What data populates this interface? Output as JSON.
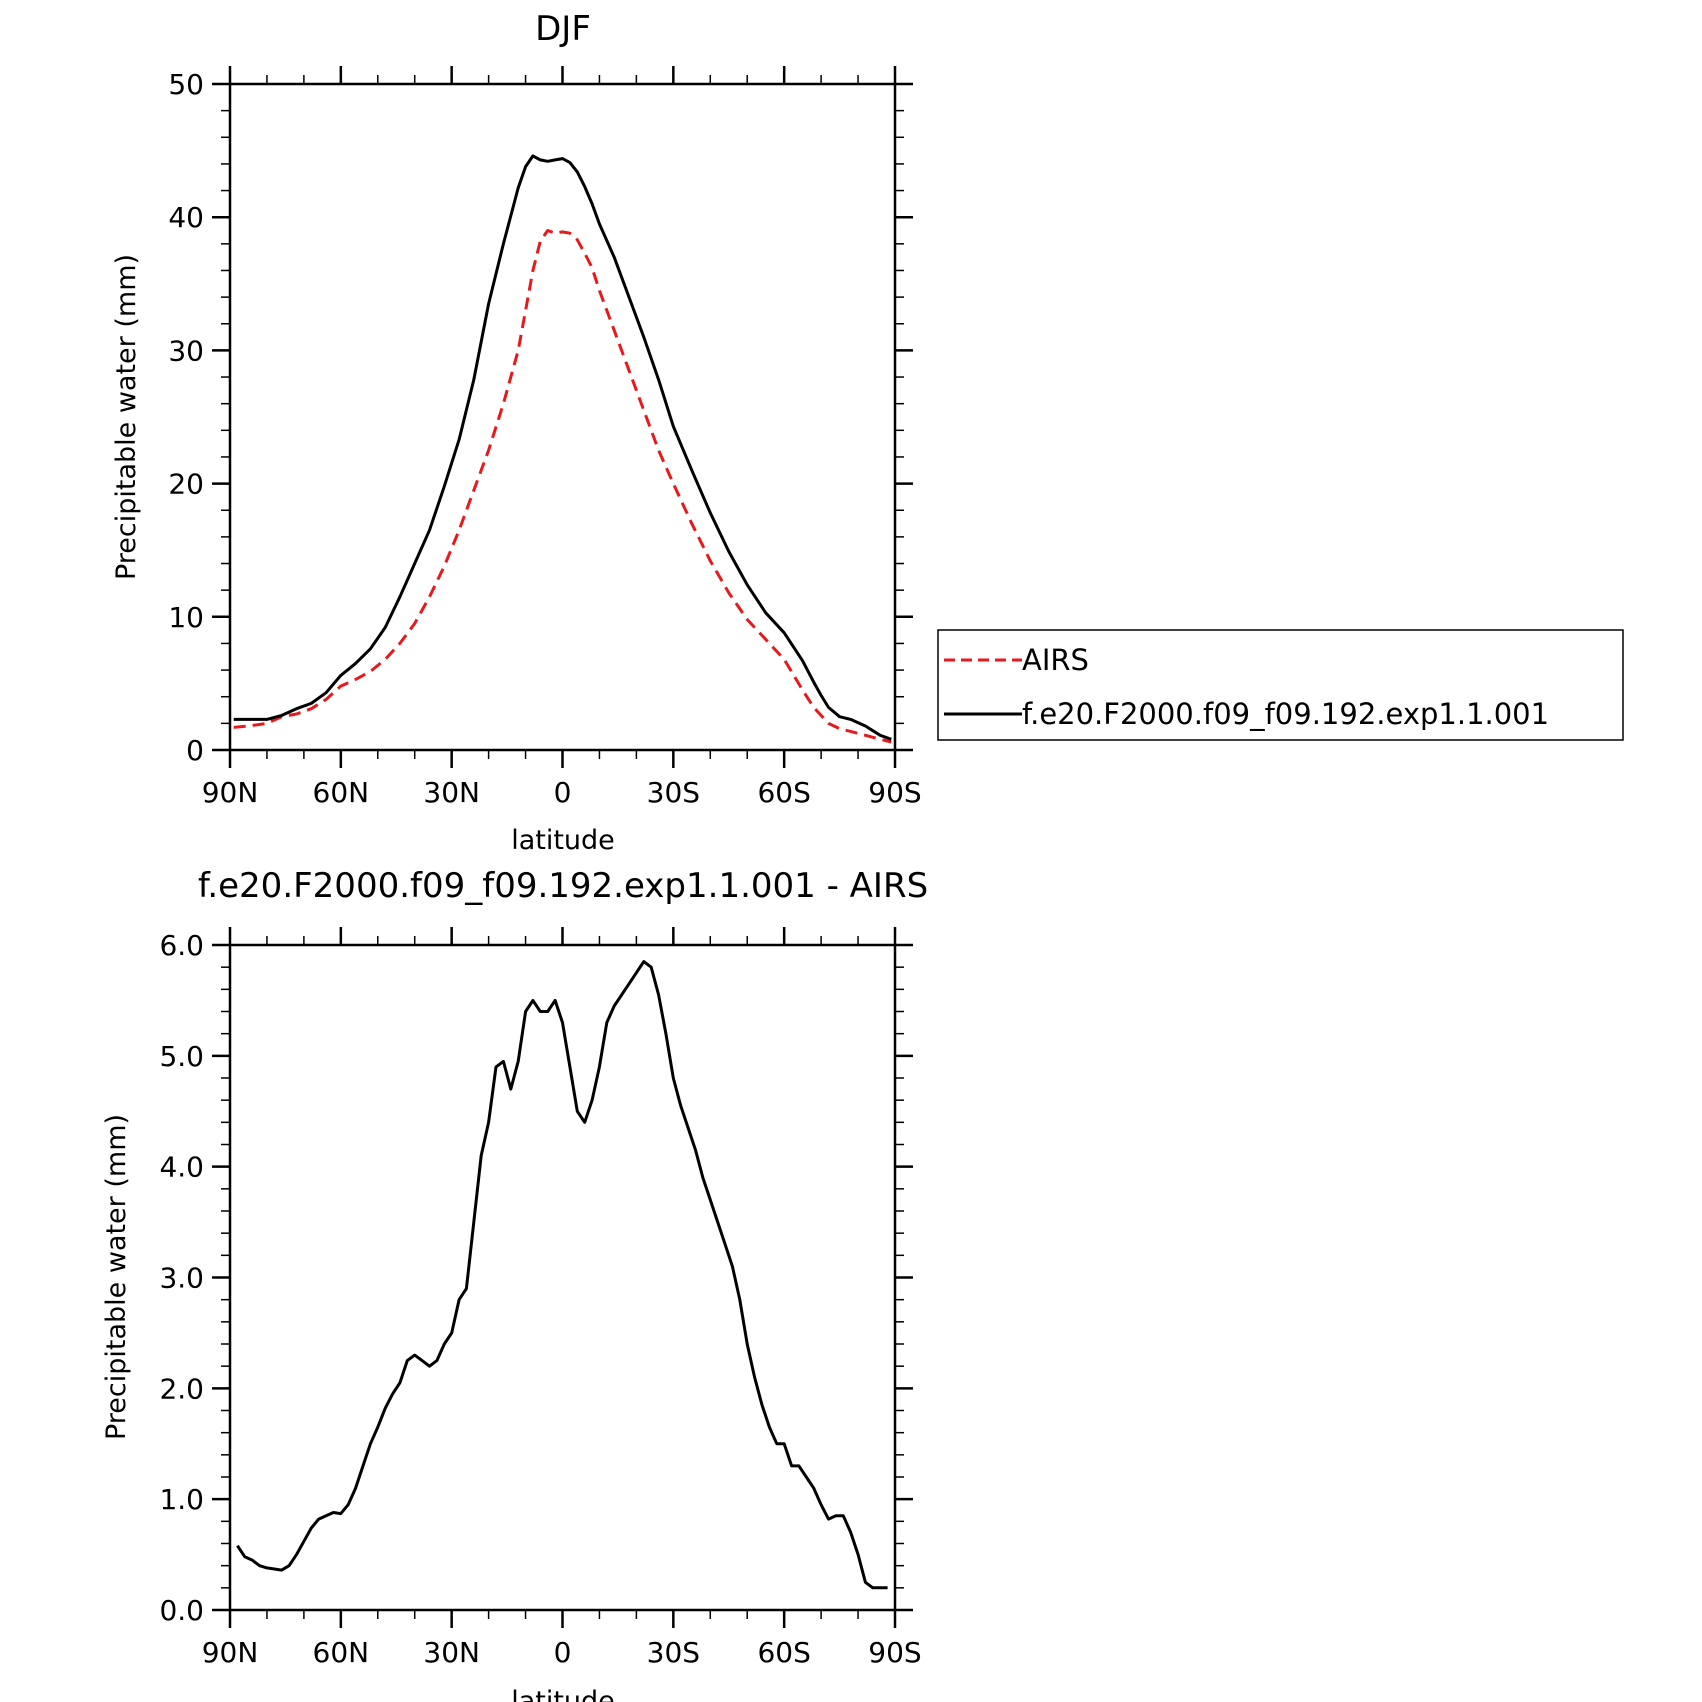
{
  "chart_data": [
    {
      "type": "line",
      "title": "DJF",
      "xlabel": "latitude",
      "ylabel": "Precipitable water (mm)",
      "xlim": [
        -90,
        90
      ],
      "ylim": [
        0,
        50
      ],
      "x_ticks": [
        {
          "value": -90,
          "label": "90N"
        },
        {
          "value": -60,
          "label": "60N"
        },
        {
          "value": -30,
          "label": "30N"
        },
        {
          "value": 0,
          "label": "0"
        },
        {
          "value": 30,
          "label": "30S"
        },
        {
          "value": 60,
          "label": "60S"
        },
        {
          "value": 90,
          "label": "90S"
        }
      ],
      "y_ticks": [
        {
          "value": 0,
          "label": "0"
        },
        {
          "value": 10,
          "label": "10"
        },
        {
          "value": 20,
          "label": "20"
        },
        {
          "value": 30,
          "label": "30"
        },
        {
          "value": 40,
          "label": "40"
        },
        {
          "value": 50,
          "label": "50"
        }
      ],
      "y_minor_step": 2,
      "x_minor_step": 10,
      "legend": {
        "placement": "right",
        "entries": [
          {
            "label": "AIRS",
            "color": "#e8191c",
            "dash": "dashed"
          },
          {
            "label": "f.e20.F2000.f09_f09.192.exp1.1.001",
            "color": "#000000",
            "dash": "solid"
          }
        ]
      },
      "series": [
        {
          "name": "AIRS",
          "color": "#e8191c",
          "dash": "dashed",
          "x": [
            -89,
            -85,
            -80,
            -76,
            -72,
            -68,
            -64,
            -60,
            -56,
            -52,
            -48,
            -44,
            -40,
            -36,
            -32,
            -28,
            -24,
            -20,
            -16,
            -12,
            -10,
            -8,
            -6,
            -4,
            -2,
            0,
            2,
            4,
            6,
            8,
            10,
            14,
            18,
            22,
            26,
            30,
            35,
            40,
            45,
            50,
            55,
            60,
            65,
            68,
            70,
            72,
            75,
            78,
            82,
            86,
            89
          ],
          "y": [
            1.7,
            1.8,
            2.0,
            2.5,
            2.7,
            3.1,
            3.8,
            4.8,
            5.3,
            5.9,
            6.8,
            8.0,
            9.5,
            11.5,
            13.8,
            16.5,
            19.5,
            22.5,
            26.0,
            30.0,
            33.0,
            36.0,
            38.2,
            39.0,
            38.8,
            38.9,
            38.8,
            38.3,
            37.3,
            36.2,
            34.5,
            31.5,
            28.5,
            25.5,
            22.5,
            20.0,
            17.0,
            14.2,
            11.8,
            9.8,
            8.3,
            6.8,
            4.5,
            3.2,
            2.6,
            2.0,
            1.6,
            1.4,
            1.1,
            0.8,
            0.6
          ]
        },
        {
          "name": "f.e20.F2000.f09_f09.192.exp1.1.001",
          "color": "#000000",
          "dash": "solid",
          "x": [
            -89,
            -85,
            -80,
            -76,
            -72,
            -68,
            -64,
            -60,
            -56,
            -52,
            -48,
            -44,
            -40,
            -36,
            -32,
            -28,
            -24,
            -20,
            -16,
            -12,
            -10,
            -8,
            -6,
            -4,
            -2,
            0,
            2,
            4,
            6,
            8,
            10,
            14,
            18,
            22,
            26,
            30,
            35,
            40,
            45,
            50,
            55,
            60,
            65,
            68,
            70,
            72,
            75,
            78,
            82,
            86,
            89
          ],
          "y": [
            2.3,
            2.3,
            2.3,
            2.6,
            3.1,
            3.5,
            4.3,
            5.6,
            6.5,
            7.6,
            9.2,
            11.5,
            14.0,
            16.5,
            19.8,
            23.3,
            27.8,
            33.5,
            38.0,
            42.2,
            43.8,
            44.6,
            44.3,
            44.2,
            44.3,
            44.4,
            44.1,
            43.4,
            42.3,
            41.0,
            39.5,
            37.0,
            34.0,
            31.0,
            27.8,
            24.3,
            21.0,
            17.8,
            14.9,
            12.4,
            10.3,
            8.8,
            6.7,
            5.1,
            4.1,
            3.2,
            2.5,
            2.3,
            1.8,
            1.1,
            0.8
          ]
        }
      ]
    },
    {
      "type": "line",
      "title": "f.e20.F2000.f09_f09.192.exp1.1.001 - AIRS",
      "xlabel": "latitude",
      "ylabel": "Precipitable water (mm)",
      "xlim": [
        -90,
        90
      ],
      "ylim": [
        0,
        6
      ],
      "x_ticks": [
        {
          "value": -90,
          "label": "90N"
        },
        {
          "value": -60,
          "label": "60N"
        },
        {
          "value": -30,
          "label": "30N"
        },
        {
          "value": 0,
          "label": "0"
        },
        {
          "value": 30,
          "label": "30S"
        },
        {
          "value": 60,
          "label": "60S"
        },
        {
          "value": 90,
          "label": "90S"
        }
      ],
      "y_ticks": [
        {
          "value": 0,
          "label": "0.0"
        },
        {
          "value": 1,
          "label": "1.0"
        },
        {
          "value": 2,
          "label": "2.0"
        },
        {
          "value": 3,
          "label": "3.0"
        },
        {
          "value": 4,
          "label": "4.0"
        },
        {
          "value": 5,
          "label": "5.0"
        },
        {
          "value": 6,
          "label": "6.0"
        }
      ],
      "y_minor_step": 0.2,
      "x_minor_step": 10,
      "series": [
        {
          "name": "f.e20.F2000.f09_f09.192.exp1.1.001 - AIRS",
          "color": "#000000",
          "dash": "solid",
          "x": [
            -88,
            -86,
            -84,
            -82,
            -80,
            -78,
            -76,
            -74,
            -72,
            -70,
            -68,
            -66,
            -64,
            -62,
            -60,
            -58,
            -56,
            -54,
            -52,
            -50,
            -48,
            -46,
            -44,
            -42,
            -40,
            -38,
            -36,
            -34,
            -32,
            -30,
            -28,
            -26,
            -24,
            -22,
            -20,
            -18,
            -16,
            -14,
            -12,
            -10,
            -8,
            -6,
            -4,
            -2,
            0,
            2,
            4,
            6,
            8,
            10,
            12,
            14,
            16,
            18,
            20,
            22,
            24,
            26,
            28,
            30,
            32,
            34,
            36,
            38,
            40,
            42,
            44,
            46,
            48,
            50,
            52,
            54,
            56,
            58,
            60,
            62,
            64,
            66,
            68,
            70,
            72,
            74,
            76,
            78,
            80,
            82,
            84,
            86,
            88
          ],
          "y": [
            0.58,
            0.48,
            0.45,
            0.4,
            0.38,
            0.37,
            0.36,
            0.4,
            0.5,
            0.62,
            0.74,
            0.82,
            0.85,
            0.88,
            0.87,
            0.95,
            1.1,
            1.3,
            1.5,
            1.65,
            1.82,
            1.95,
            2.05,
            2.25,
            2.3,
            2.25,
            2.2,
            2.25,
            2.4,
            2.5,
            2.8,
            2.9,
            3.5,
            4.1,
            4.4,
            4.9,
            4.95,
            4.7,
            4.95,
            5.4,
            5.5,
            5.4,
            5.4,
            5.5,
            5.3,
            4.9,
            4.5,
            4.4,
            4.6,
            4.9,
            5.3,
            5.45,
            5.55,
            5.65,
            5.75,
            5.85,
            5.8,
            5.55,
            5.2,
            4.8,
            4.55,
            4.35,
            4.15,
            3.9,
            3.7,
            3.5,
            3.3,
            3.1,
            2.8,
            2.4,
            2.1,
            1.85,
            1.65,
            1.5,
            1.5,
            1.3,
            1.3,
            1.2,
            1.1,
            0.95,
            0.82,
            0.85,
            0.85,
            0.7,
            0.5,
            0.25,
            0.2,
            0.2,
            0.2
          ]
        }
      ]
    }
  ]
}
